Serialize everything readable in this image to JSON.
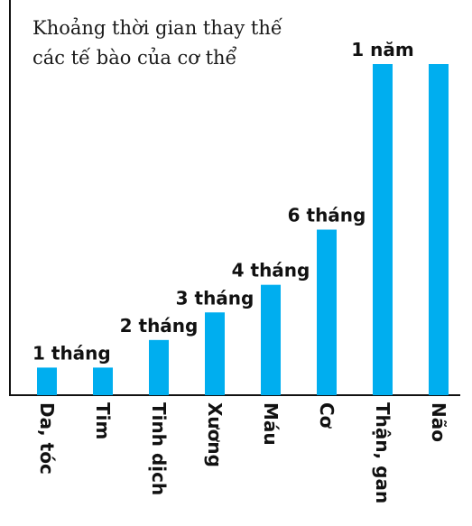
{
  "chart_data": {
    "type": "bar",
    "title_lines": [
      "Khoảng thời gian thay thế",
      "các tế bào của cơ thể"
    ],
    "categories": [
      "Da, tóc",
      "Tim",
      "Tinh dịch",
      "Xương",
      "Máu",
      "Cơ",
      "Thận, gan",
      "Não"
    ],
    "values": [
      1,
      1,
      2,
      3,
      4,
      6,
      12,
      12
    ],
    "value_labels": [
      "1 tháng",
      "",
      "2 tháng",
      "3 tháng",
      "4 tháng",
      "6 tháng",
      "1 năm",
      ""
    ],
    "unit": "tháng",
    "ylim": [
      0,
      12
    ],
    "grid": false,
    "legend": "none",
    "bar_color": "#00aeef"
  }
}
